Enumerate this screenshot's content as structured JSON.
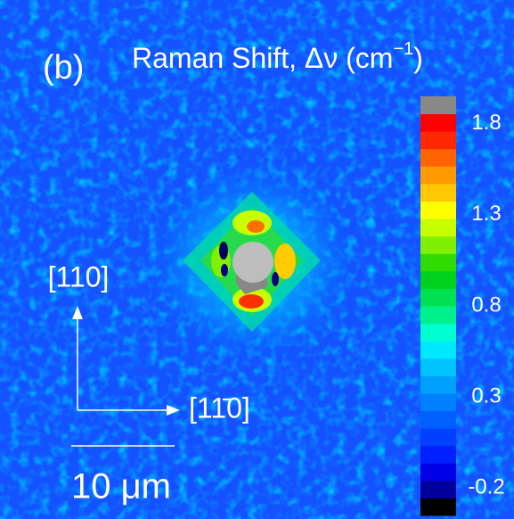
{
  "chart_data": {
    "type": "heatmap",
    "panel_label": "(b)",
    "title": {
      "main": "Raman Shift, Δν (cm",
      "superscript": "−1",
      "end": ")"
    },
    "colorbar": {
      "clim": [
        -0.35,
        1.95
      ],
      "ticks": [
        1.8,
        1.3,
        0.8,
        0.3,
        -0.2
      ],
      "colors": [
        "#000000",
        "#00009a",
        "#0000e6",
        "#0020ff",
        "#0040ff",
        "#0060ff",
        "#0080ff",
        "#00a0ff",
        "#00c4ff",
        "#00e8ff",
        "#00ffd0",
        "#00f08c",
        "#00e050",
        "#00d21e",
        "#30dc00",
        "#80f000",
        "#c8ff00",
        "#ffff00",
        "#ffc800",
        "#ff9a00",
        "#ff6400",
        "#ff2800",
        "#ff0000",
        "#888888"
      ]
    },
    "axes_labels": {
      "vertical": "[110]",
      "horizontal": "[11̄0]"
    },
    "scale_bar": "10 μm"
  }
}
